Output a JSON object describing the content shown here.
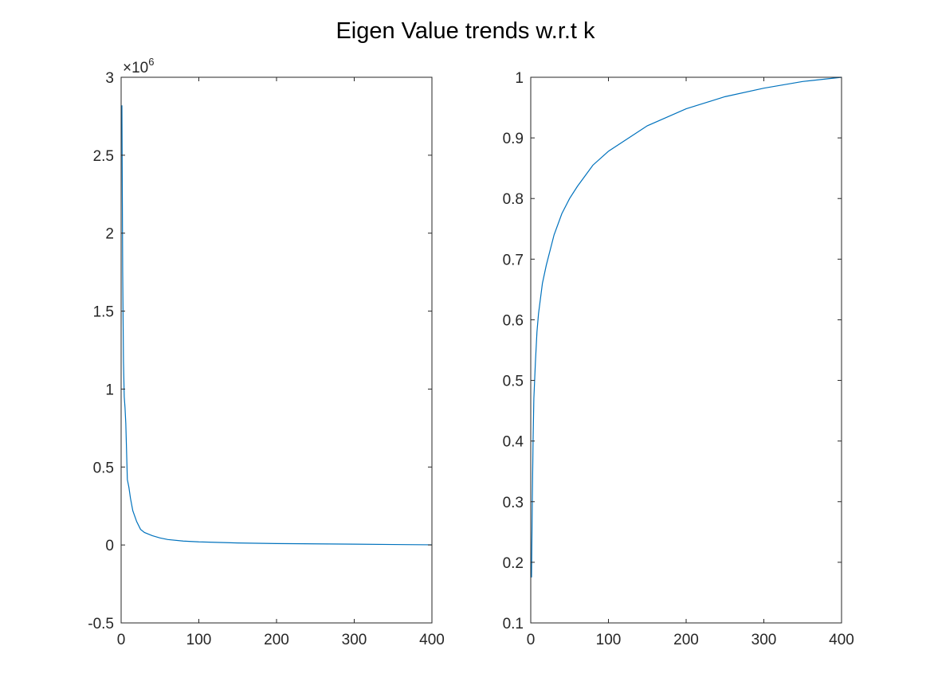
{
  "figure": {
    "title": "Eigen Value trends w.r.t k"
  },
  "chart_data": [
    {
      "type": "line",
      "title": "",
      "xlabel": "",
      "ylabel": "",
      "xlim": [
        0,
        400
      ],
      "ylim": [
        -0.5,
        3
      ],
      "y_exponent_label": "×10",
      "y_exponent_power": "6",
      "xticks": [
        0,
        100,
        200,
        300,
        400
      ],
      "xtick_labels": [
        "0",
        "100",
        "200",
        "300",
        "400"
      ],
      "yticks": [
        -0.5,
        0,
        0.5,
        1,
        1.5,
        2,
        2.5,
        3
      ],
      "ytick_labels": [
        "-0.5",
        "0",
        "0.5",
        "1",
        "1.5",
        "2",
        "2.5",
        "3"
      ],
      "grid": false,
      "color": "#0072BD",
      "series": [
        {
          "x": [
            1,
            2,
            3,
            4,
            5,
            6,
            8,
            10,
            12,
            15,
            20,
            25,
            30,
            40,
            50,
            60,
            80,
            100,
            150,
            200,
            250,
            300,
            350,
            400
          ],
          "values": [
            2.82,
            1.75,
            1.18,
            0.95,
            0.88,
            0.78,
            0.42,
            0.37,
            0.3,
            0.22,
            0.15,
            0.1,
            0.08,
            0.06,
            0.045,
            0.035,
            0.025,
            0.02,
            0.013,
            0.009,
            0.007,
            0.005,
            0.003,
            0.001
          ]
        }
      ]
    },
    {
      "type": "line",
      "title": "",
      "xlabel": "",
      "ylabel": "",
      "xlim": [
        0,
        400
      ],
      "ylim": [
        0.1,
        1
      ],
      "xticks": [
        0,
        100,
        200,
        300,
        400
      ],
      "xtick_labels": [
        "0",
        "100",
        "200",
        "300",
        "400"
      ],
      "yticks": [
        0.1,
        0.2,
        0.3,
        0.4,
        0.5,
        0.6,
        0.7,
        0.8,
        0.9,
        1
      ],
      "ytick_labels": [
        "0.1",
        "0.2",
        "0.3",
        "0.4",
        "0.5",
        "0.6",
        "0.7",
        "0.8",
        "0.9",
        "1"
      ],
      "grid": false,
      "color": "#0072BD",
      "series": [
        {
          "x": [
            1,
            2,
            3,
            4,
            5,
            6,
            8,
            10,
            15,
            20,
            30,
            40,
            50,
            60,
            80,
            100,
            150,
            200,
            250,
            300,
            350,
            400
          ],
          "values": [
            0.175,
            0.3,
            0.4,
            0.47,
            0.5,
            0.53,
            0.58,
            0.61,
            0.66,
            0.69,
            0.74,
            0.775,
            0.8,
            0.82,
            0.855,
            0.878,
            0.92,
            0.948,
            0.968,
            0.982,
            0.993,
            1.0
          ]
        }
      ]
    }
  ]
}
